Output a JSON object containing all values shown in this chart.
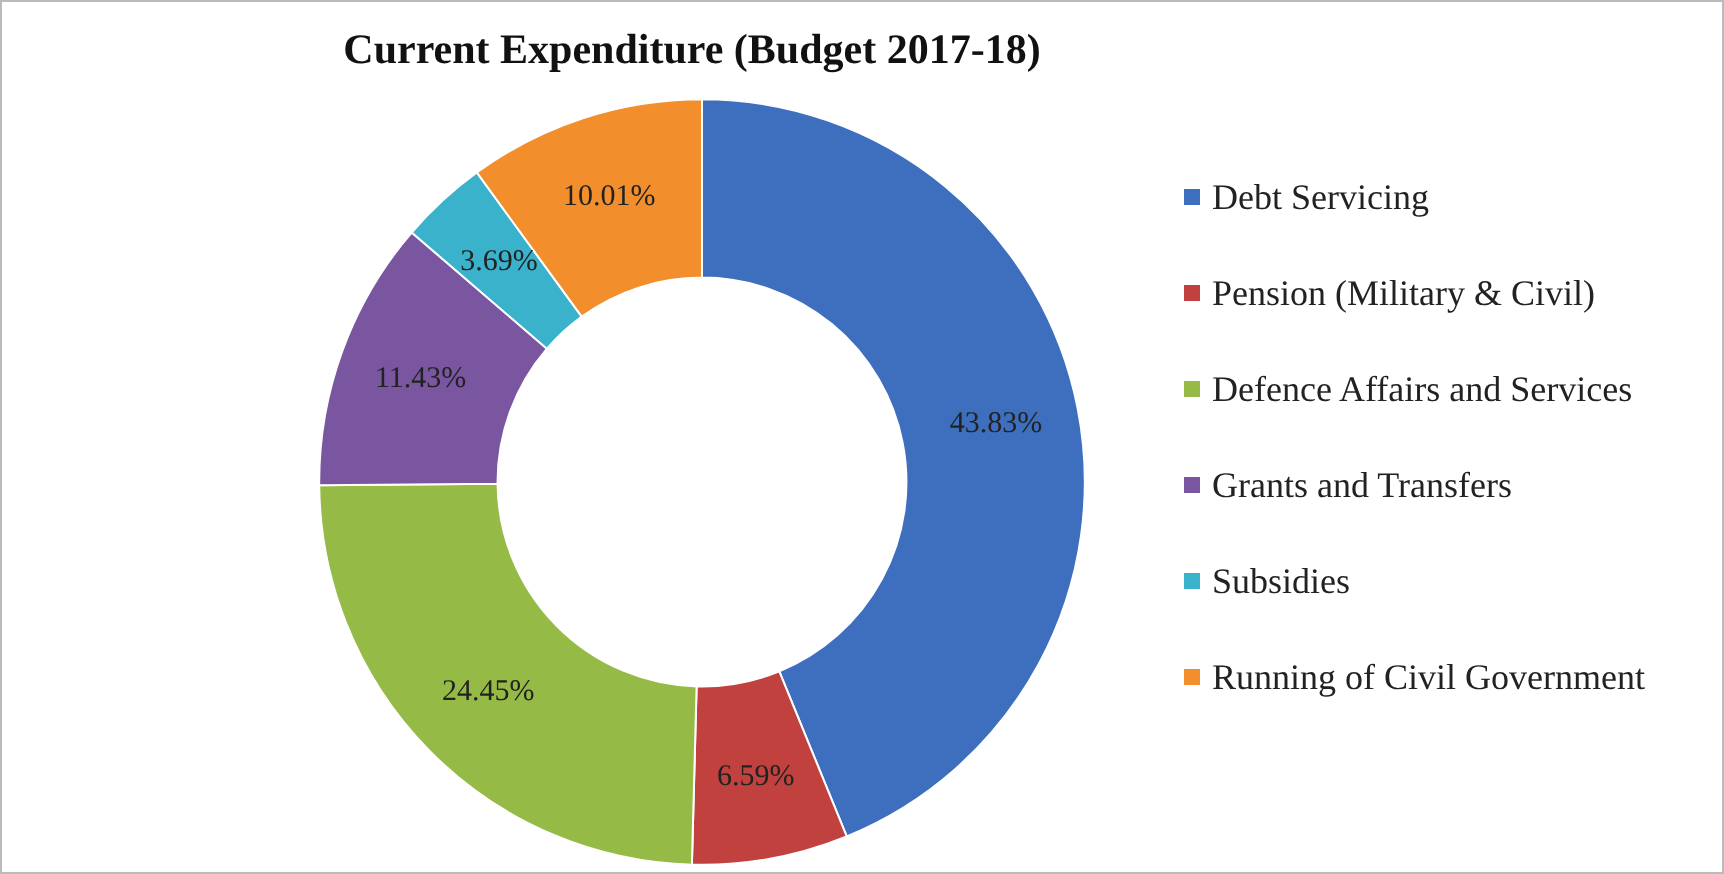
{
  "chart_data": {
    "type": "donut",
    "title": "Current Expenditure (Budget 2017-18)",
    "categories": [
      "Debt Servicing",
      "Pension (Military & Civil)",
      "Defence Affairs and Services",
      "Grants and Transfers",
      "Subsidies",
      "Running of Civil Government"
    ],
    "values": [
      43.83,
      6.59,
      24.45,
      11.43,
      3.69,
      10.01
    ],
    "value_labels": [
      "43.83%",
      "6.59%",
      "24.45%",
      "11.43%",
      "3.69%",
      "10.01%"
    ],
    "colors": [
      "#3e6fbf",
      "#c0413d",
      "#95ba45",
      "#7a55a0",
      "#3ab2cc",
      "#f28e2b"
    ],
    "legend": "right"
  }
}
